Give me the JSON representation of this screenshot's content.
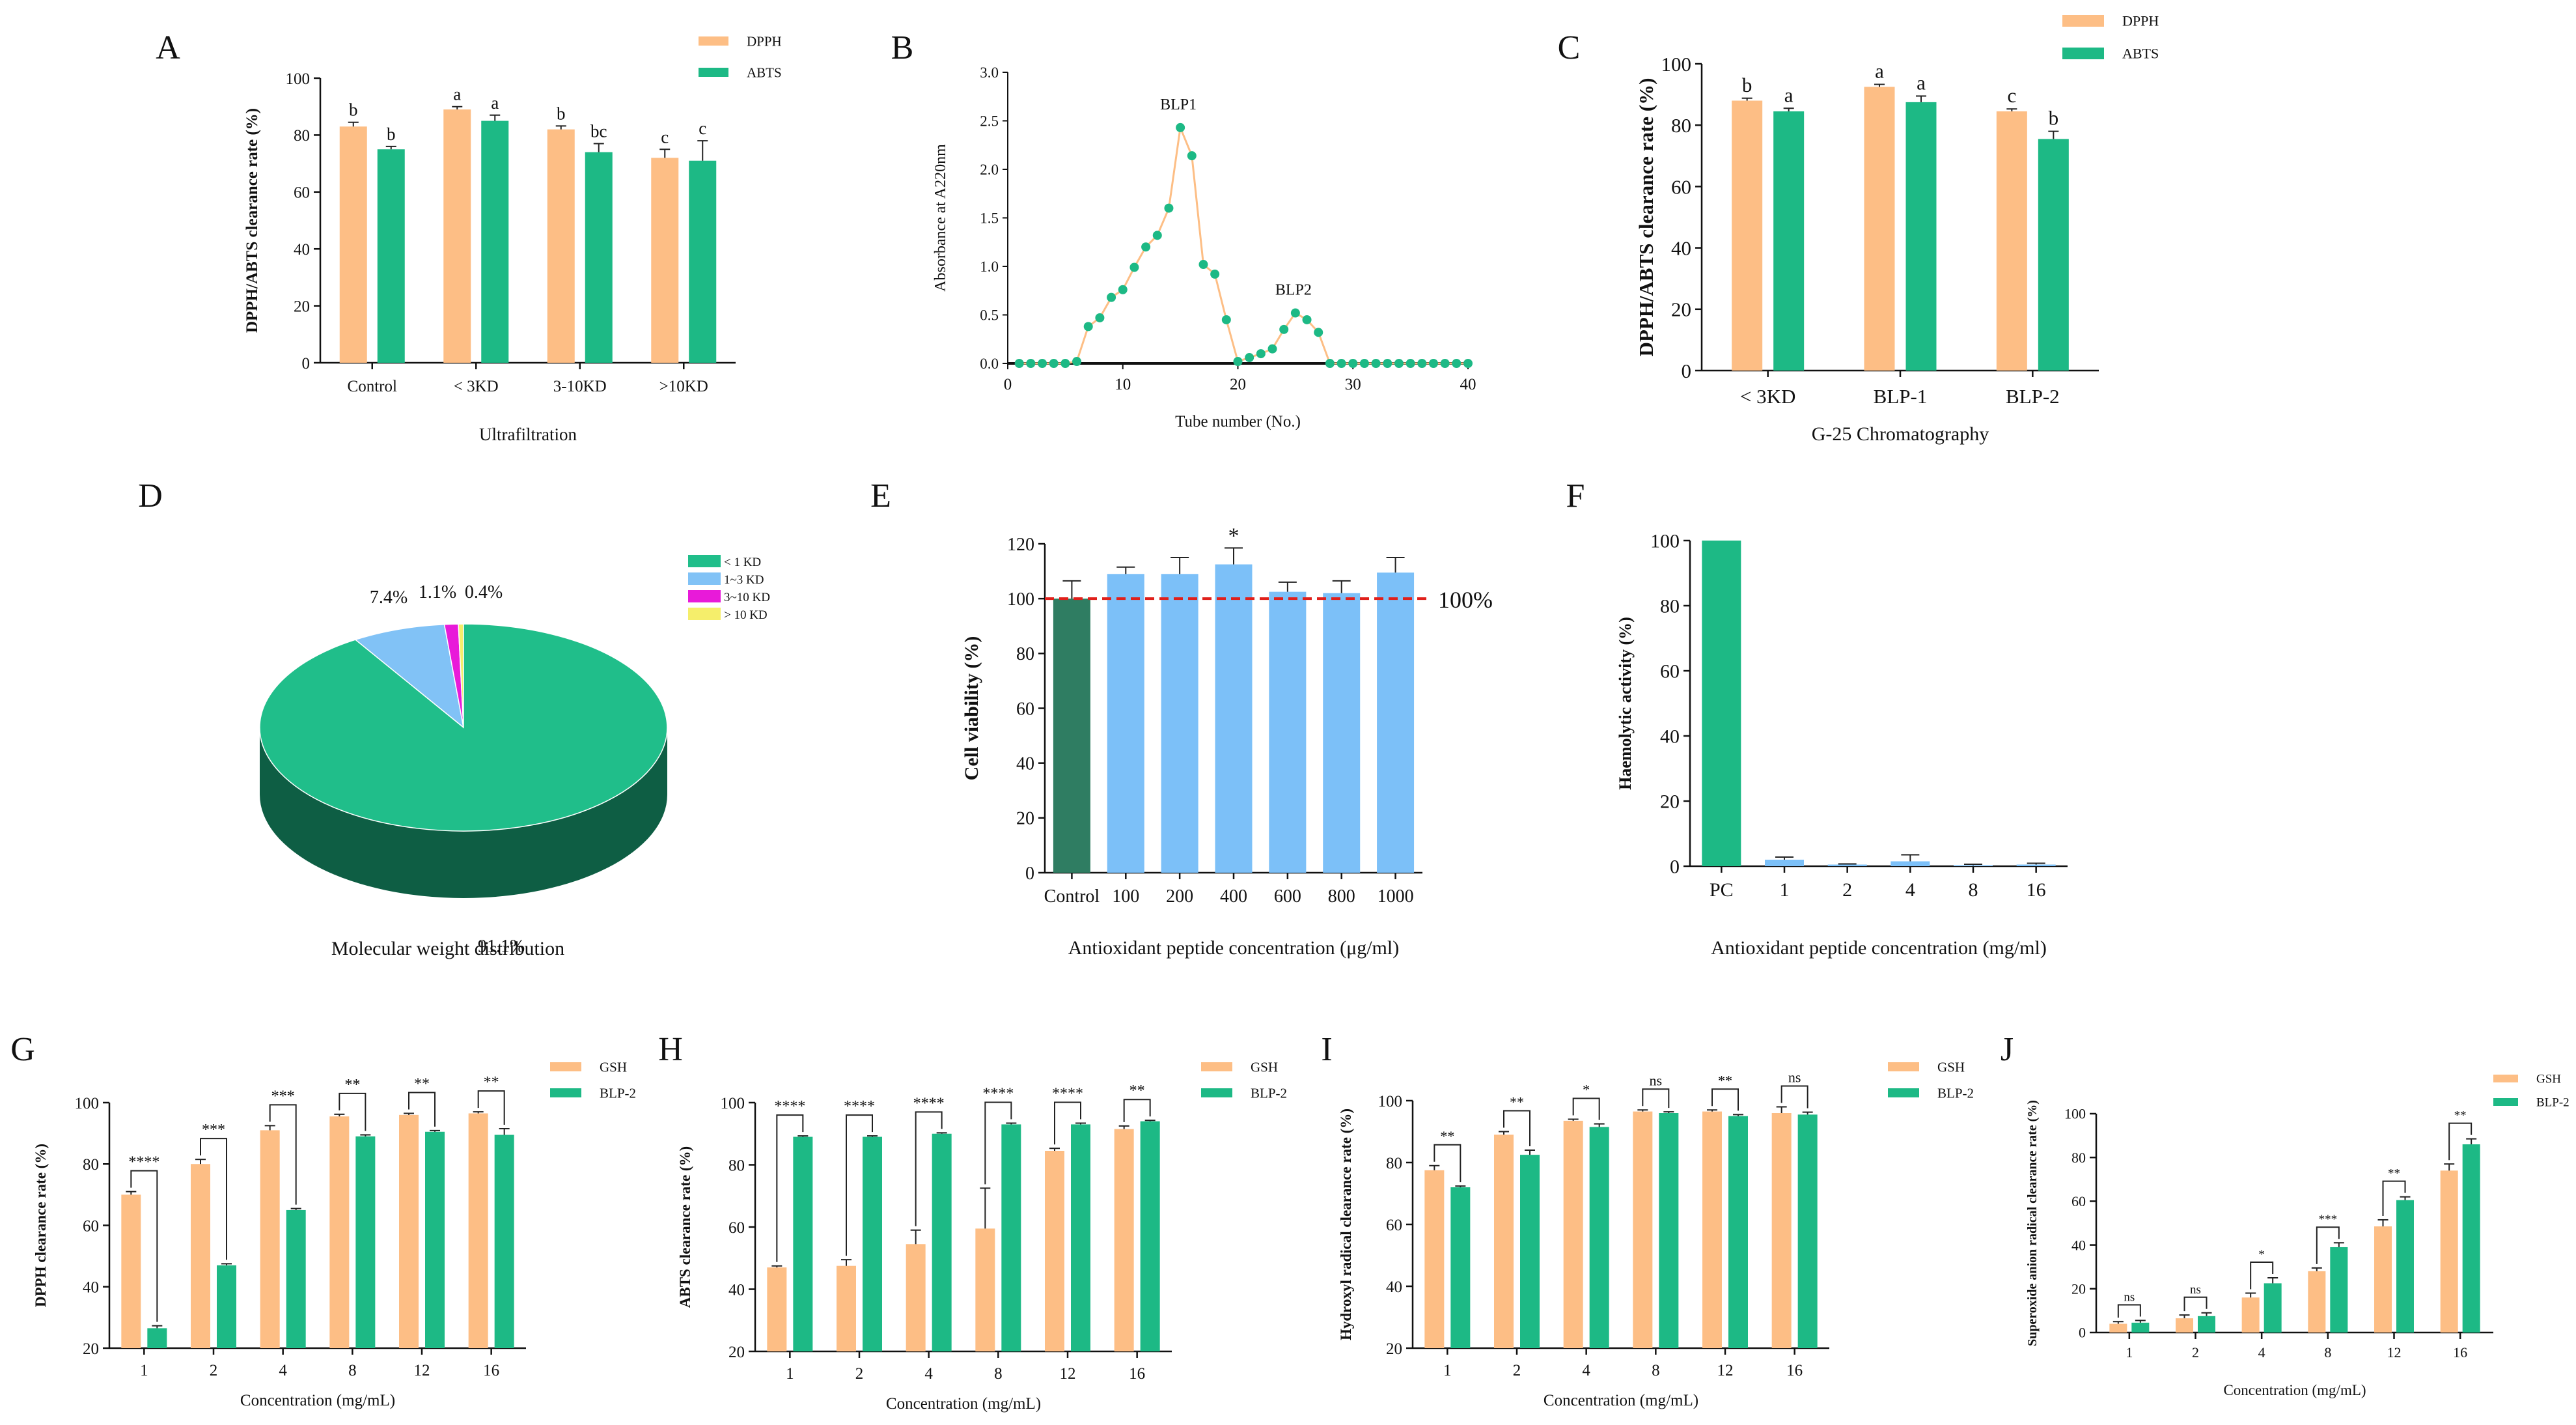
{
  "colors": {
    "orange": "#FDBE85",
    "green": "#1DB985",
    "blue": "#7CC0F8",
    "dark_green": "#2F7D62",
    "pie_green": "#20BE8A",
    "pie_green_side": "#0E5E44",
    "pie_blue": "#81C2F6",
    "pie_magenta": "#E81AD9",
    "pie_yellow": "#F5EE6B",
    "red": "#E0201B"
  },
  "chart_data": [
    {
      "id": "A",
      "type": "bar",
      "panel_label": "A",
      "categories": [
        "Control",
        "< 3KD",
        "3-10KD",
        ">10KD"
      ],
      "series": [
        {
          "name": "DPPH",
          "values": [
            83,
            89,
            82,
            72
          ],
          "errors": [
            1.5,
            1,
            1.2,
            3
          ],
          "letters": [
            "b",
            "a",
            "b",
            "c"
          ]
        },
        {
          "name": "ABTS",
          "values": [
            75,
            85,
            74,
            71
          ],
          "errors": [
            1,
            2,
            3,
            7
          ],
          "letters": [
            "b",
            "a",
            "bc",
            "c"
          ]
        }
      ],
      "title": "",
      "xlabel": "Ultrafiltration",
      "ylabel": "DPPH/ABTS clearance rate (%)",
      "ylim": [
        0,
        100
      ],
      "yticks": [
        0,
        20,
        40,
        60,
        80,
        100
      ]
    },
    {
      "id": "B",
      "type": "line",
      "panel_label": "B",
      "x": [
        1,
        2,
        3,
        4,
        5,
        6,
        7,
        8,
        9,
        10,
        11,
        12,
        13,
        14,
        15,
        16,
        17,
        18,
        19,
        20,
        21,
        22,
        23,
        24,
        25,
        26,
        27,
        28,
        29,
        30,
        31,
        32,
        33,
        34,
        35,
        36,
        37,
        38,
        39,
        40
      ],
      "y": [
        0,
        0,
        0,
        0,
        0,
        0.02,
        0.38,
        0.47,
        0.68,
        0.76,
        0.99,
        1.2,
        1.32,
        1.6,
        2.43,
        2.14,
        1.02,
        0.92,
        0.45,
        0.02,
        0.06,
        0.1,
        0.15,
        0.35,
        0.52,
        0.45,
        0.32,
        0,
        0,
        0,
        0,
        0,
        0,
        0,
        0,
        0,
        0,
        0,
        0,
        0
      ],
      "annotations": [
        {
          "text": "BLP1",
          "x": 15,
          "y": 2.43
        },
        {
          "text": "BLP2",
          "x": 25,
          "y": 0.52
        }
      ],
      "title": "",
      "xlabel": "Tube number (No.)",
      "ylabel": "Absorbance at A220nm",
      "xlim": [
        0,
        40
      ],
      "xticks": [
        0,
        10,
        20,
        30,
        40
      ],
      "ylim": [
        0,
        3.0
      ],
      "yticks": [
        "0.0",
        "0.5",
        "1.0",
        "1.5",
        "2.0",
        "2.5",
        "3.0"
      ]
    },
    {
      "id": "C",
      "type": "bar",
      "panel_label": "C",
      "categories": [
        "< 3KD",
        "BLP-1",
        "BLP-2"
      ],
      "series": [
        {
          "name": "DPPH",
          "values": [
            88,
            92.5,
            84.5
          ],
          "errors": [
            0.8,
            0.8,
            0.8
          ],
          "letters": [
            "b",
            "a",
            "c"
          ]
        },
        {
          "name": "ABTS",
          "values": [
            84.5,
            87.5,
            75.5
          ],
          "errors": [
            1,
            2,
            2.5
          ],
          "letters": [
            "a",
            "a",
            "b"
          ]
        }
      ],
      "title": "",
      "xlabel": "G-25 Chromatography",
      "ylabel": "DPPH/ABTS clearance rate (%)",
      "ylim": [
        0,
        100
      ],
      "yticks": [
        0,
        20,
        40,
        60,
        80,
        100
      ]
    },
    {
      "id": "D",
      "type": "pie",
      "panel_label": "D",
      "labels": [
        "< 1 KD",
        "1~3 KD",
        "3~10 KD",
        "> 10 KD"
      ],
      "values": [
        91.1,
        7.4,
        1.1,
        0.4
      ],
      "value_labels": [
        "91.1%",
        "7.4%",
        "1.1%",
        "0.4%"
      ],
      "title": "",
      "xlabel": "Molecular weight distribution"
    },
    {
      "id": "E",
      "type": "bar",
      "panel_label": "E",
      "categories": [
        "Control",
        "100",
        "200",
        "400",
        "600",
        "800",
        "1000"
      ],
      "values": [
        100,
        109,
        109,
        112.5,
        102.5,
        102,
        109.5
      ],
      "errors": [
        6.5,
        2.5,
        6,
        6,
        3.5,
        4.5,
        5.5
      ],
      "marks": [
        "",
        "",
        "",
        "*",
        "",
        "",
        ""
      ],
      "reference_line": {
        "value": 100,
        "label": "100%"
      },
      "title": "",
      "xlabel": "Antioxidant peptide concentration (μg/ml)",
      "ylabel": "Cell viability (%)",
      "ylim": [
        0,
        120
      ],
      "yticks": [
        0,
        20,
        40,
        60,
        80,
        100,
        120
      ]
    },
    {
      "id": "F",
      "type": "bar",
      "panel_label": "F",
      "categories": [
        "PC",
        "1",
        "2",
        "4",
        "8",
        "16"
      ],
      "values": [
        100,
        2,
        0.5,
        1.5,
        0.3,
        0.5
      ],
      "errors": [
        0,
        0.8,
        0.2,
        2,
        0.3,
        0.4
      ],
      "title": "",
      "xlabel": "Antioxidant peptide concentration (mg/ml)",
      "ylabel": "Haemolytic activity (%)",
      "ylim": [
        0,
        100
      ],
      "yticks": [
        0,
        20,
        40,
        60,
        80,
        100
      ]
    },
    {
      "id": "G",
      "type": "bar",
      "panel_label": "G",
      "categories": [
        "1",
        "2",
        "4",
        "8",
        "12",
        "16"
      ],
      "series": [
        {
          "name": "GSH",
          "values": [
            70,
            80,
            91,
            95.5,
            96,
            96.5
          ],
          "errors": [
            1,
            1.5,
            1.5,
            0.7,
            0.5,
            0.5
          ]
        },
        {
          "name": "BLP-2",
          "values": [
            26.5,
            47,
            65,
            89,
            90.5,
            89.5
          ],
          "errors": [
            0.8,
            0.5,
            0.5,
            0.5,
            0.4,
            2
          ]
        }
      ],
      "significance": [
        "****",
        "***",
        "***",
        "**",
        "**",
        "**"
      ],
      "title": "",
      "xlabel": "Concentration (mg/mL)",
      "ylabel": "DPPH clearance rate (%)",
      "ylim": [
        20,
        100
      ],
      "yticks": [
        20,
        40,
        60,
        80,
        100
      ]
    },
    {
      "id": "H",
      "type": "bar",
      "panel_label": "H",
      "categories": [
        "1",
        "2",
        "4",
        "8",
        "12",
        "16"
      ],
      "series": [
        {
          "name": "GSH",
          "values": [
            47,
            47.5,
            54.5,
            59.5,
            84.5,
            91.5
          ],
          "errors": [
            0.5,
            2,
            4.5,
            13,
            0.8,
            1
          ]
        },
        {
          "name": "BLP-2",
          "values": [
            89,
            89,
            90,
            93,
            93,
            94
          ],
          "errors": [
            0.3,
            0.3,
            0.3,
            0.4,
            0.4,
            0.3
          ]
        }
      ],
      "significance": [
        "****",
        "****",
        "****",
        "****",
        "****",
        "**"
      ],
      "title": "",
      "xlabel": "Concentration (mg/mL)",
      "ylabel": "ABTS clearance rate (%)",
      "ylim": [
        20,
        100
      ],
      "yticks": [
        20,
        40,
        60,
        80,
        100
      ]
    },
    {
      "id": "I",
      "type": "bar",
      "panel_label": "I",
      "categories": [
        "1",
        "2",
        "4",
        "8",
        "12",
        "16"
      ],
      "series": [
        {
          "name": "GSH",
          "values": [
            77.5,
            89,
            93.5,
            96.5,
            96.5,
            96
          ],
          "errors": [
            1.5,
            1,
            0.5,
            0.5,
            0.5,
            2
          ]
        },
        {
          "name": "BLP-2",
          "values": [
            72,
            82.5,
            91.5,
            96,
            95,
            95.5
          ],
          "errors": [
            0.4,
            1.5,
            1,
            0.4,
            0.5,
            0.8
          ]
        }
      ],
      "significance": [
        "**",
        "**",
        "*",
        "ns",
        "**",
        "ns"
      ],
      "title": "",
      "xlabel": "Concentration (mg/mL)",
      "ylabel": "Hydroxyl radical clearance rate (%)",
      "ylim": [
        20,
        100
      ],
      "yticks": [
        20,
        40,
        60,
        80,
        100
      ]
    },
    {
      "id": "J",
      "type": "bar",
      "panel_label": "J",
      "categories": [
        "1",
        "2",
        "4",
        "8",
        "12",
        "16"
      ],
      "series": [
        {
          "name": "GSH",
          "values": [
            4,
            6.5,
            16,
            28,
            48.5,
            74
          ],
          "errors": [
            1,
            1.5,
            2,
            1.5,
            3,
            3
          ]
        },
        {
          "name": "BLP-2",
          "values": [
            4.5,
            7.5,
            22.5,
            39,
            60.5,
            86
          ],
          "errors": [
            1,
            1.5,
            2.5,
            2,
            1.5,
            2.5
          ]
        }
      ],
      "significance": [
        "ns",
        "ns",
        "*",
        "***",
        "**",
        "**"
      ],
      "title": "",
      "xlabel": "Concentration (mg/mL)",
      "ylabel": "Superoxide anion radical clearance rate (%)",
      "ylim": [
        0,
        100
      ],
      "yticks": [
        0,
        20,
        40,
        60,
        80,
        100
      ]
    }
  ]
}
